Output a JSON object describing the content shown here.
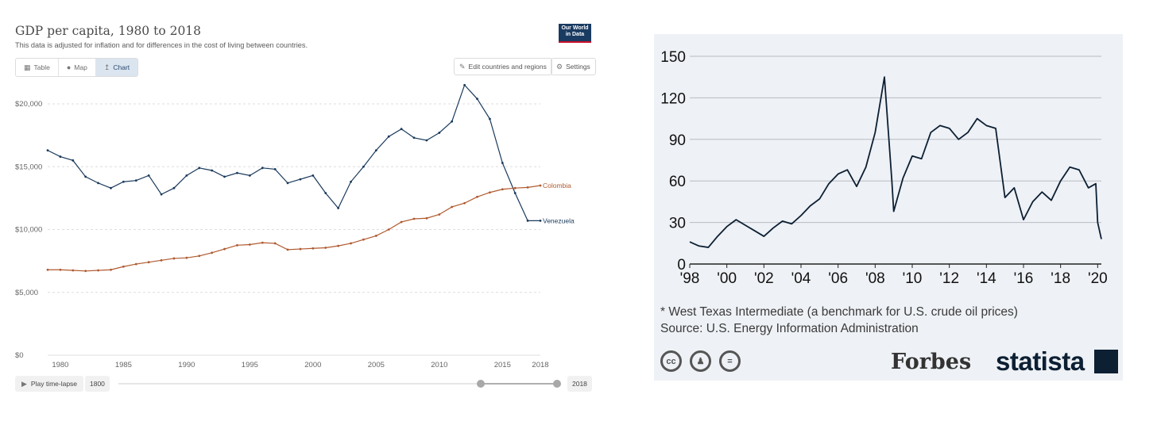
{
  "owid": {
    "title": "GDP per capita, 1980 to 2018",
    "subtitle": "This data is adjusted for inflation and for differences in the cost of living between countries.",
    "logo": "Our World in Data",
    "tabs": [
      {
        "label": "Table",
        "icon": "table-icon"
      },
      {
        "label": "Map",
        "icon": "globe-icon"
      },
      {
        "label": "Chart",
        "icon": "line-chart-icon",
        "active": true
      }
    ],
    "edit_label": "Edit countries and regions",
    "settings_label": "Settings",
    "play_label": "Play time-lapse",
    "start_year": "1800",
    "end_year": "2018"
  },
  "statista": {
    "note": "* West Texas Intermediate (a benchmark for U.S. crude oil prices)",
    "source": "Source: U.S. Energy Information Administration",
    "forbes": "Forbes",
    "brand": "statista"
  },
  "chart_data": [
    {
      "type": "line",
      "title": "GDP per capita, 1980 to 2018",
      "ylim": [
        0,
        20000
      ],
      "yticks": [
        0,
        5000,
        10000,
        15000,
        20000
      ],
      "ytick_labels": [
        "$0",
        "$5,000",
        "$10,000",
        "$15,000",
        "$20,000"
      ],
      "xticks": [
        1980,
        1985,
        1990,
        1995,
        2000,
        2005,
        2010,
        2015,
        2018
      ],
      "x": [
        1979,
        1980,
        1981,
        1982,
        1983,
        1984,
        1985,
        1986,
        1987,
        1988,
        1989,
        1990,
        1991,
        1992,
        1993,
        1994,
        1995,
        1996,
        1997,
        1998,
        1999,
        2000,
        2001,
        2002,
        2003,
        2004,
        2005,
        2006,
        2007,
        2008,
        2009,
        2010,
        2011,
        2012,
        2013,
        2014,
        2015,
        2016,
        2017,
        2018
      ],
      "series": [
        {
          "name": "Venezuela",
          "color": "#1a3a5c",
          "values": [
            16300,
            15800,
            15500,
            14200,
            13700,
            13300,
            13800,
            13900,
            14300,
            12800,
            13300,
            14300,
            14900,
            14700,
            14200,
            14500,
            14300,
            14900,
            14800,
            13700,
            14000,
            14300,
            12900,
            11700,
            13800,
            15000,
            16300,
            17400,
            18000,
            17300,
            17100,
            17700,
            18600,
            21500,
            20400,
            18800,
            15300,
            12900,
            10700,
            10700
          ]
        },
        {
          "name": "Colombia",
          "color": "#b05a2f",
          "values": [
            6800,
            6800,
            6750,
            6700,
            6750,
            6800,
            7050,
            7250,
            7400,
            7550,
            7700,
            7750,
            7900,
            8150,
            8450,
            8750,
            8800,
            8950,
            8900,
            8400,
            8450,
            8500,
            8550,
            8700,
            8900,
            9200,
            9500,
            10000,
            10600,
            10850,
            10900,
            11200,
            11800,
            12100,
            12600,
            12950,
            13200,
            13300,
            13350,
            13500
          ]
        }
      ]
    },
    {
      "type": "line",
      "xlabel": "",
      "ylabel": "",
      "ylim": [
        0,
        150
      ],
      "yticks": [
        0,
        30,
        60,
        90,
        120,
        150
      ],
      "xtick_labels": [
        "'98",
        "'00",
        "'02",
        "'04",
        "'06",
        "'08",
        "'10",
        "'12",
        "'14",
        "'16",
        "'18",
        "'20"
      ],
      "x": [
        1998.0,
        1998.5,
        1999.0,
        1999.5,
        2000.0,
        2000.5,
        2001.0,
        2001.5,
        2002.0,
        2002.5,
        2003.0,
        2003.5,
        2004.0,
        2004.5,
        2005.0,
        2005.5,
        2006.0,
        2006.5,
        2007.0,
        2007.5,
        2008.0,
        2008.5,
        2008.9,
        2009.0,
        2009.5,
        2010.0,
        2010.5,
        2011.0,
        2011.5,
        2012.0,
        2012.5,
        2013.0,
        2013.5,
        2014.0,
        2014.5,
        2015.0,
        2015.5,
        2016.0,
        2016.5,
        2017.0,
        2017.5,
        2018.0,
        2018.5,
        2019.0,
        2019.5,
        2019.9,
        2020.0,
        2020.2
      ],
      "series": [
        {
          "name": "",
          "color": "#0c1f33",
          "values": [
            16,
            13,
            12,
            20,
            27,
            32,
            28,
            24,
            20,
            26,
            31,
            29,
            35,
            42,
            47,
            58,
            65,
            68,
            56,
            70,
            95,
            135,
            60,
            38,
            62,
            78,
            76,
            95,
            100,
            98,
            90,
            95,
            105,
            100,
            98,
            48,
            55,
            32,
            45,
            52,
            46,
            60,
            70,
            68,
            55,
            58,
            30,
            18
          ]
        }
      ]
    }
  ]
}
